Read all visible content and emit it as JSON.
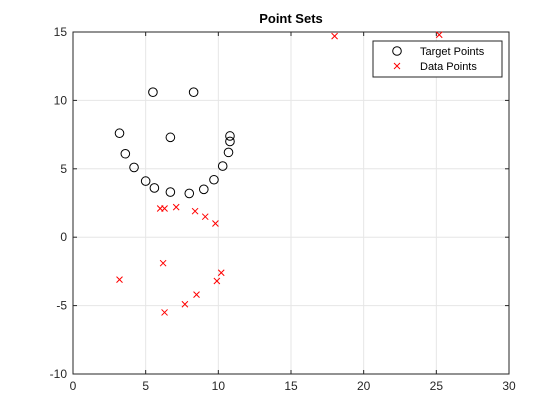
{
  "chart_data": {
    "type": "scatter",
    "title": "Point Sets",
    "xlabel": "",
    "ylabel": "",
    "xlim": [
      0,
      30
    ],
    "ylim": [
      -10,
      15
    ],
    "xticks": [
      0,
      5,
      10,
      15,
      20,
      25,
      30
    ],
    "yticks": [
      -10,
      -5,
      0,
      5,
      10,
      15
    ],
    "grid": true,
    "legend_position": "top-right",
    "series": [
      {
        "name": "Target Points",
        "marker": "circle",
        "color": "#000000",
        "points": [
          [
            3.2,
            7.6
          ],
          [
            3.6,
            6.1
          ],
          [
            4.2,
            5.1
          ],
          [
            5.0,
            4.1
          ],
          [
            5.6,
            3.6
          ],
          [
            6.7,
            3.3
          ],
          [
            8.0,
            3.2
          ],
          [
            9.0,
            3.5
          ],
          [
            9.7,
            4.2
          ],
          [
            10.3,
            5.2
          ],
          [
            10.7,
            6.2
          ],
          [
            10.8,
            7.0
          ],
          [
            10.8,
            7.4
          ],
          [
            6.7,
            7.3
          ],
          [
            5.5,
            10.6
          ],
          [
            8.3,
            10.6
          ]
        ]
      },
      {
        "name": "Data Points",
        "marker": "x",
        "color": "#ff0000",
        "points": [
          [
            18.0,
            14.7
          ],
          [
            25.2,
            14.8
          ],
          [
            6.0,
            2.1
          ],
          [
            6.3,
            2.1
          ],
          [
            7.1,
            2.2
          ],
          [
            8.4,
            1.9
          ],
          [
            9.1,
            1.5
          ],
          [
            9.8,
            1.0
          ],
          [
            3.2,
            -3.1
          ],
          [
            6.2,
            -1.9
          ],
          [
            10.2,
            -2.6
          ],
          [
            9.9,
            -3.2
          ],
          [
            8.5,
            -4.2
          ],
          [
            7.7,
            -4.9
          ],
          [
            6.3,
            -5.5
          ]
        ]
      }
    ]
  }
}
